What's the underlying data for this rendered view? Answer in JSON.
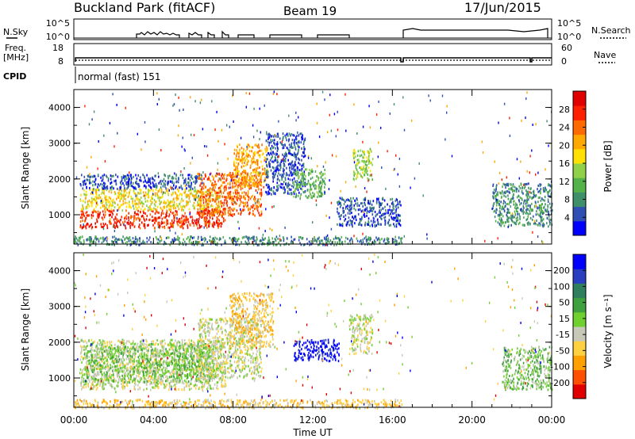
{
  "header": {
    "site": "Buckland Park (fitACF)",
    "beam": "Beam 19",
    "date": "17/Jun/2015"
  },
  "panels": {
    "nsky": {
      "label": "N.Sky",
      "left_ticks": [
        "10^5",
        "10^0"
      ],
      "right_ticks": [
        "10^5",
        "10^0"
      ],
      "right_label": "N.Search"
    },
    "freq": {
      "label_line1": "Freq.",
      "label_line2": "[MHz]",
      "left_ticks": [
        "18",
        "8"
      ],
      "right_ticks": [
        "60",
        "0"
      ],
      "right_label": "Nave"
    },
    "cpid": {
      "label": "CPID",
      "text": "normal (fast) 151"
    }
  },
  "colors": {
    "power_scale": [
      "#0000ff",
      "#2f4fb5",
      "#3f8f6a",
      "#55b24a",
      "#8fd24a",
      "#ffe000",
      "#ffa800",
      "#ff6a00",
      "#ff2000",
      "#e00000"
    ],
    "velocity_scale": [
      "#0000ff",
      "#2a3fbf",
      "#2f7f5f",
      "#3fa03f",
      "#6fd030",
      "#c8c8b8",
      "#ffd040",
      "#ffa000",
      "#ff5000",
      "#e00000"
    ]
  },
  "chart_data": [
    {
      "type": "heatmap",
      "name": "power",
      "ylabel": "Slant Range [km]",
      "yticks": [
        "1000",
        "2000",
        "3000",
        "4000"
      ],
      "ylim": [
        180,
        4500
      ],
      "colorbar_label": "Power [dB]",
      "colorbar_ticks": [
        "4",
        "8",
        "12",
        "16",
        "20",
        "24",
        "28"
      ],
      "blobs": [
        {
          "t0": 0.3,
          "t1": 7.6,
          "r0": 650,
          "r1": 1150,
          "lvl": 8
        },
        {
          "t0": 0.3,
          "t1": 7.4,
          "r0": 1150,
          "r1": 1750,
          "lvl": 5
        },
        {
          "t0": 0.3,
          "t1": 6.5,
          "r0": 1750,
          "r1": 2150,
          "lvl": 1
        },
        {
          "t0": 6.2,
          "t1": 9.4,
          "r0": 1000,
          "r1": 2200,
          "lvl": 7
        },
        {
          "t0": 8.0,
          "t1": 9.7,
          "r0": 1800,
          "r1": 3000,
          "lvl": 6
        },
        {
          "t0": 9.6,
          "t1": 11.6,
          "r0": 1600,
          "r1": 3300,
          "lvl": 1
        },
        {
          "t0": 11.0,
          "t1": 12.6,
          "r0": 1500,
          "r1": 2300,
          "lvl": 3
        },
        {
          "t0": 14.0,
          "t1": 15.0,
          "r0": 2000,
          "r1": 2900,
          "lvl": 4
        },
        {
          "t0": 13.2,
          "t1": 16.4,
          "r0": 700,
          "r1": 1500,
          "lvl": 1
        },
        {
          "t0": 21.0,
          "t1": 24.0,
          "r0": 700,
          "r1": 1900,
          "lvl": 2
        },
        {
          "t0": 0.0,
          "t1": 16.5,
          "r0": 180,
          "r1": 420,
          "lvl": 2
        }
      ]
    },
    {
      "type": "heatmap",
      "name": "velocity",
      "ylabel": "Slant Range [km]",
      "yticks": [
        "1000",
        "2000",
        "3000",
        "4000"
      ],
      "ylim": [
        180,
        4500
      ],
      "xlabel": "Time UT",
      "xticks": [
        "00:00",
        "04:00",
        "08:00",
        "12:00",
        "16:00",
        "20:00",
        "00:00"
      ],
      "xlim": [
        0,
        24
      ],
      "colorbar_label": "Velocity [m s⁻¹]",
      "colorbar_ticks": [
        "200",
        "100",
        "50",
        "15",
        "-15",
        "-50",
        "-100",
        "-200"
      ],
      "blobs": [
        {
          "t0": 0.3,
          "t1": 7.6,
          "r0": 700,
          "r1": 2100,
          "lvl": 5
        },
        {
          "t0": 0.5,
          "t1": 7.0,
          "r0": 900,
          "r1": 2000,
          "lvl": 4
        },
        {
          "t0": 6.2,
          "t1": 9.4,
          "r0": 1000,
          "r1": 2700,
          "lvl": 5
        },
        {
          "t0": 7.8,
          "t1": 10.0,
          "r0": 1900,
          "r1": 3400,
          "lvl": 6
        },
        {
          "t0": 11.0,
          "t1": 13.3,
          "r0": 1500,
          "r1": 2100,
          "lvl": 0
        },
        {
          "t0": 13.8,
          "t1": 15.0,
          "r0": 1700,
          "r1": 2800,
          "lvl": 5
        },
        {
          "t0": 21.5,
          "t1": 24.0,
          "r0": 700,
          "r1": 1900,
          "lvl": 4
        },
        {
          "t0": 0.0,
          "t1": 16.5,
          "r0": 180,
          "r1": 420,
          "lvl": 6
        }
      ]
    }
  ]
}
